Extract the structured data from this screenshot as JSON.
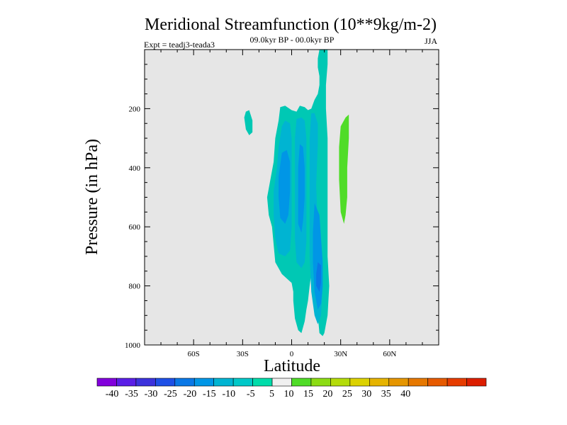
{
  "chart_data": {
    "type": "heatmap",
    "title": "Meridional Streamfunction (10**9kg/m-2)",
    "subtitle_left": "Expt = teadj3-teada3",
    "subtitle_center": "09.0kyr BP - 00.0kyr BP",
    "subtitle_right": "JJA",
    "xlabel": "Latitude",
    "ylabel": "Pressure (in hPa)",
    "xlim": [
      -90,
      90
    ],
    "ylim": [
      0,
      1000
    ],
    "y_inverted": true,
    "x_ticks": [
      {
        "value": -60,
        "label": "60S"
      },
      {
        "value": -30,
        "label": "30S"
      },
      {
        "value": 0,
        "label": "0"
      },
      {
        "value": 30,
        "label": "30N"
      },
      {
        "value": 60,
        "label": "60N"
      }
    ],
    "y_ticks": [
      {
        "value": 200,
        "label": "200"
      },
      {
        "value": 400,
        "label": "400"
      },
      {
        "value": 600,
        "label": "600"
      },
      {
        "value": 800,
        "label": "800"
      },
      {
        "value": 1000,
        "label": "1000"
      }
    ],
    "background_color": "#e6e6e6",
    "contour_regions": [
      {
        "name": "sh-upper-blob",
        "level": -10,
        "color": "#00c8b4",
        "outline": [
          [
            -28,
            210
          ],
          [
            -26,
            205
          ],
          [
            -24,
            240
          ],
          [
            -24,
            280
          ],
          [
            -26,
            290
          ],
          [
            -28,
            270
          ],
          [
            -29,
            230
          ]
        ]
      },
      {
        "name": "main-envelope",
        "level": -10,
        "color": "#00c8b4",
        "outline": [
          [
            -7,
            195
          ],
          [
            -4,
            190
          ],
          [
            0,
            205
          ],
          [
            3,
            210
          ],
          [
            5,
            190
          ],
          [
            8,
            195
          ],
          [
            10,
            205
          ],
          [
            12,
            200
          ],
          [
            14,
            170
          ],
          [
            16,
            150
          ],
          [
            17,
            120
          ],
          [
            17,
            90
          ],
          [
            16,
            60
          ],
          [
            16,
            30
          ],
          [
            17,
            0
          ],
          [
            22,
            0
          ],
          [
            22,
            50
          ],
          [
            21,
            120
          ],
          [
            21,
            200
          ],
          [
            22,
            300
          ],
          [
            22,
            400
          ],
          [
            22,
            500
          ],
          [
            22,
            600
          ],
          [
            22,
            700
          ],
          [
            23,
            800
          ],
          [
            22,
            900
          ],
          [
            20,
            960
          ],
          [
            19,
            970
          ],
          [
            17,
            960
          ],
          [
            16,
            900
          ],
          [
            14,
            800
          ],
          [
            12,
            760
          ],
          [
            11,
            800
          ],
          [
            10,
            850
          ],
          [
            9,
            880
          ],
          [
            8,
            920
          ],
          [
            6,
            960
          ],
          [
            4,
            950
          ],
          [
            2,
            910
          ],
          [
            1,
            850
          ],
          [
            1,
            820
          ],
          [
            0,
            790
          ],
          [
            -2,
            780
          ],
          [
            -6,
            760
          ],
          [
            -10,
            720
          ],
          [
            -11,
            660
          ],
          [
            -12,
            600
          ],
          [
            -14,
            560
          ],
          [
            -15,
            500
          ],
          [
            -13,
            440
          ],
          [
            -11,
            380
          ],
          [
            -10,
            300
          ],
          [
            -8,
            240
          ]
        ]
      },
      {
        "name": "west-15-band",
        "level": -15,
        "color": "#00b4d2",
        "outline": [
          [
            -6,
            260
          ],
          [
            -4,
            240
          ],
          [
            -1,
            250
          ],
          [
            0,
            300
          ],
          [
            0,
            400
          ],
          [
            0,
            500
          ],
          [
            0,
            600
          ],
          [
            -1,
            680
          ],
          [
            -4,
            700
          ],
          [
            -8,
            690
          ],
          [
            -10,
            640
          ],
          [
            -11,
            560
          ],
          [
            -11,
            480
          ],
          [
            -9,
            400
          ],
          [
            -8,
            330
          ]
        ]
      },
      {
        "name": "west-20-core",
        "level": -20,
        "color": "#0096e6",
        "outline": [
          [
            -6,
            350
          ],
          [
            -3,
            340
          ],
          [
            -1,
            380
          ],
          [
            -1,
            480
          ],
          [
            -2,
            560
          ],
          [
            -4,
            590
          ],
          [
            -7,
            570
          ],
          [
            -8,
            500
          ],
          [
            -8,
            430
          ]
        ]
      },
      {
        "name": "central-15-column",
        "level": -15,
        "color": "#00b4d2",
        "outline": [
          [
            3,
            235
          ],
          [
            6,
            230
          ],
          [
            8,
            240
          ],
          [
            9,
            300
          ],
          [
            9,
            420
          ],
          [
            9,
            540
          ],
          [
            9,
            650
          ],
          [
            8,
            720
          ],
          [
            6,
            740
          ],
          [
            3,
            720
          ],
          [
            2,
            640
          ],
          [
            2,
            520
          ],
          [
            2,
            400
          ],
          [
            2,
            300
          ]
        ]
      },
      {
        "name": "central-20-core",
        "level": -20,
        "color": "#0096e6",
        "outline": [
          [
            5,
            320
          ],
          [
            7,
            330
          ],
          [
            8,
            400
          ],
          [
            8,
            500
          ],
          [
            7,
            580
          ],
          [
            6,
            620
          ],
          [
            4,
            590
          ],
          [
            4,
            480
          ],
          [
            4,
            400
          ]
        ]
      },
      {
        "name": "east-15-column",
        "level": -15,
        "color": "#00b4d2",
        "outline": [
          [
            12,
            215
          ],
          [
            14,
            215
          ],
          [
            16,
            250
          ],
          [
            16,
            320
          ],
          [
            15,
            460
          ],
          [
            16,
            600
          ],
          [
            18,
            720
          ],
          [
            19,
            800
          ],
          [
            18,
            900
          ],
          [
            16,
            930
          ],
          [
            14,
            900
          ],
          [
            12,
            820
          ],
          [
            11,
            700
          ],
          [
            11,
            560
          ],
          [
            11,
            420
          ],
          [
            11,
            300
          ]
        ]
      },
      {
        "name": "east-20-band",
        "level": -20,
        "color": "#0096e6",
        "outline": [
          [
            14,
            520
          ],
          [
            17,
            560
          ],
          [
            18,
            640
          ],
          [
            19,
            720
          ],
          [
            19,
            800
          ],
          [
            18,
            860
          ],
          [
            16,
            880
          ],
          [
            14,
            820
          ],
          [
            13,
            720
          ],
          [
            13,
            620
          ]
        ]
      },
      {
        "name": "east-25-core",
        "level": -25,
        "color": "#0a78e6",
        "outline": [
          [
            16,
            720
          ],
          [
            18,
            730
          ],
          [
            18,
            790
          ],
          [
            17,
            820
          ],
          [
            15,
            800
          ],
          [
            15,
            760
          ]
        ]
      },
      {
        "name": "nh-positive-blob",
        "level": 5,
        "color": "#50dc28",
        "outline": [
          [
            33,
            230
          ],
          [
            35,
            220
          ],
          [
            35,
            300
          ],
          [
            34,
            400
          ],
          [
            34,
            500
          ],
          [
            33,
            560
          ],
          [
            32,
            590
          ],
          [
            30,
            550
          ],
          [
            29,
            440
          ],
          [
            29,
            330
          ],
          [
            30,
            260
          ]
        ]
      }
    ],
    "colorbar": {
      "colors": [
        "#8200dc",
        "#5a1ee6",
        "#3c32dc",
        "#1e50e6",
        "#0a78e6",
        "#0096e6",
        "#00b4d2",
        "#00c8c8",
        "#00dcaa",
        "#f0f0f0",
        "#50dc28",
        "#8cdc14",
        "#b4dc0a",
        "#dcd200",
        "#e6b400",
        "#e69600",
        "#e67800",
        "#e65a00",
        "#e63c00",
        "#dc1e00"
      ],
      "levels": [
        -40,
        -35,
        -30,
        -25,
        -20,
        -15,
        -10,
        -5,
        5,
        10,
        15,
        20,
        25,
        30,
        35,
        40
      ]
    }
  }
}
